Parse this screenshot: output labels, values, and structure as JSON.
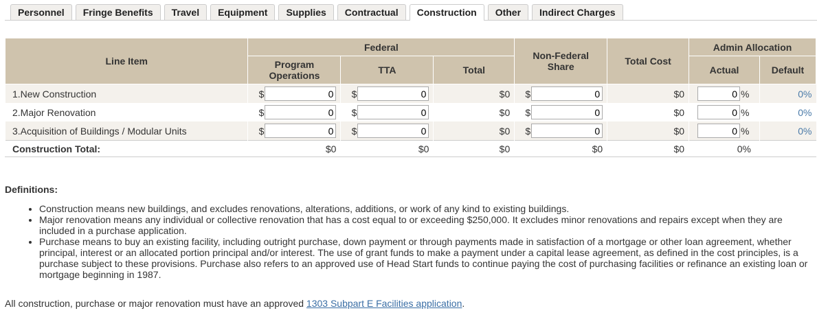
{
  "tabs": [
    "Personnel",
    "Fringe Benefits",
    "Travel",
    "Equipment",
    "Supplies",
    "Contractual",
    "Construction",
    "Other",
    "Indirect Charges"
  ],
  "active_tab": "Construction",
  "headers": {
    "line_item": "Line Item",
    "federal": "Federal",
    "program_operations": "Program Operations",
    "tta": "TTA",
    "total": "Total",
    "non_federal": "Non-Federal Share",
    "total_cost": "Total Cost",
    "admin_allocation": "Admin Allocation",
    "actual": "Actual",
    "default": "Default"
  },
  "currency": "$",
  "rows": [
    {
      "label": "1.New Construction",
      "program_operations": "0",
      "tta": "0",
      "total": "$0",
      "non_federal": "0",
      "total_cost": "$0",
      "actual": "0",
      "pct": "%",
      "default": "0%"
    },
    {
      "label": "2.Major Renovation",
      "program_operations": "0",
      "tta": "0",
      "total": "$0",
      "non_federal": "0",
      "total_cost": "$0",
      "actual": "0",
      "pct": "%",
      "default": "0%"
    },
    {
      "label": "3.Acquisition of Buildings / Modular Units",
      "program_operations": "0",
      "tta": "0",
      "total": "$0",
      "non_federal": "0",
      "total_cost": "$0",
      "actual": "0",
      "pct": "%",
      "default": "0%"
    }
  ],
  "totals": {
    "label": "Construction Total:",
    "program_operations": "$0",
    "tta": "$0",
    "total": "$0",
    "non_federal": "$0",
    "total_cost": "$0",
    "actual": "0%"
  },
  "definitions": {
    "title": "Definitions:",
    "items": [
      "Construction means new buildings, and excludes renovations, alterations, additions, or work of any kind to existing buildings.",
      "Major renovation means any individual or collective renovation that has a cost equal to or exceeding $250,000. It excludes minor renovations and repairs except when they are included in a purchase application.",
      "Purchase means to buy an existing facility, including outright purchase, down payment or through payments made in satisfaction of a mortgage or other loan agreement, whether principal, interest or an allocated portion principal and/or interest. The use of grant funds to make a payment under a capital lease agreement, as defined in the cost principles, is a purchase subject to these provisions. Purchase also refers to an approved use of Head Start funds to continue paying the cost of purchasing facilities or refinance an existing loan or mortgage beginning in 1987."
    ]
  },
  "footer": {
    "text": "All construction, purchase or major renovation must have an approved ",
    "link": "1303 Subpart E Facilities application",
    "end": "."
  }
}
